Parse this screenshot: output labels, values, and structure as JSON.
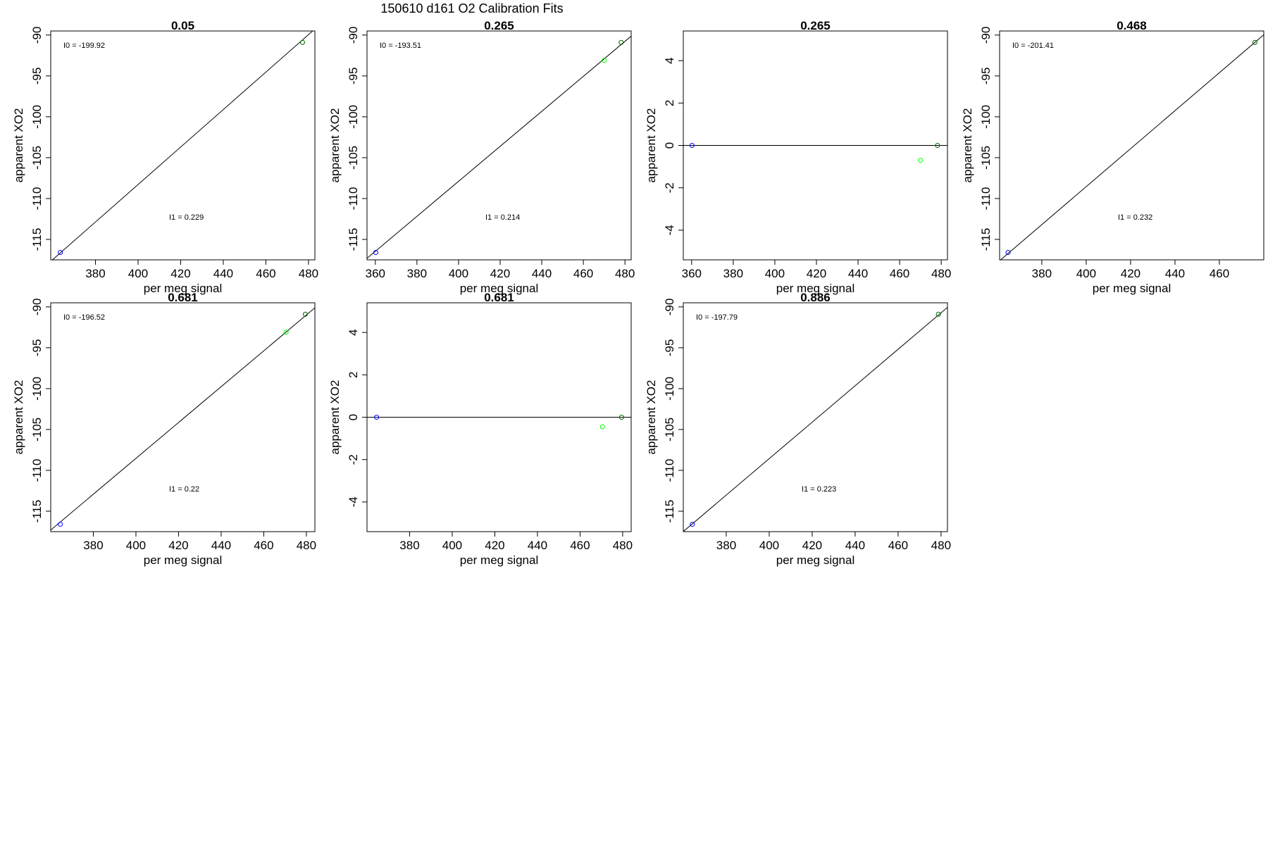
{
  "figure": {
    "title": "150610    d161    O2 Calibration Fits"
  },
  "colors": {
    "frame": "#000000",
    "fit_line": "#000000",
    "blue_point": "#0000ff",
    "green_point": "#00ff00",
    "dark_green_point": "#006400"
  },
  "chart_data": [
    {
      "type": "scatter",
      "title": "0.05",
      "xlabel": "per meg signal",
      "ylabel": "apparent XO2",
      "xlim": [
        359,
        483
      ],
      "ylim": [
        -117.5,
        -89.5
      ],
      "xticks": [
        380,
        400,
        420,
        440,
        460,
        480
      ],
      "yticks": [
        -90,
        -95,
        -100,
        -105,
        -110,
        -115
      ],
      "annotations": [
        {
          "label": "I0 =",
          "value": "-199.92"
        },
        {
          "label": "I1 =",
          "value": "0.229"
        }
      ],
      "fit_line": {
        "x": [
          355,
          485
        ],
        "y": [
          -118.6,
          -88.8
        ]
      },
      "points": [
        {
          "x": 363.5,
          "y": -116.6,
          "color": "blue"
        },
        {
          "x": 477.2,
          "y": -90.9,
          "color": "dark_green"
        }
      ]
    },
    {
      "type": "scatter",
      "title": "0.265",
      "xlabel": "per meg signal",
      "ylabel": "apparent XO2",
      "xlim": [
        356,
        483
      ],
      "ylim": [
        -117.5,
        -89.5
      ],
      "xticks": [
        360,
        380,
        400,
        420,
        440,
        460,
        480
      ],
      "yticks": [
        -90,
        -95,
        -100,
        -105,
        -110,
        -115
      ],
      "annotations": [
        {
          "label": "I0 =",
          "value": "-193.51"
        },
        {
          "label": "I1 =",
          "value": "0.214"
        }
      ],
      "fit_line": {
        "x": [
          350,
          485
        ],
        "y": [
          -118.6,
          -89.7
        ]
      },
      "points": [
        {
          "x": 360.2,
          "y": -116.6,
          "color": "blue"
        },
        {
          "x": 470.0,
          "y": -93.1,
          "color": "green"
        },
        {
          "x": 478.2,
          "y": -90.9,
          "color": "dark_green"
        }
      ]
    },
    {
      "type": "scatter",
      "title": "0.265",
      "xlabel": "per meg signal",
      "ylabel": "apparent XO2",
      "xlim": [
        356,
        483
      ],
      "ylim": [
        -5.4,
        5.4
      ],
      "xticks": [
        360,
        380,
        400,
        420,
        440,
        460,
        480
      ],
      "yticks": [
        4,
        2,
        0,
        -2,
        -4
      ],
      "annotations": [],
      "fit_line": {
        "x": [
          350,
          490
        ],
        "y": [
          0,
          0
        ]
      },
      "points": [
        {
          "x": 360.2,
          "y": 0.0,
          "color": "blue"
        },
        {
          "x": 470.0,
          "y": -0.7,
          "color": "green"
        },
        {
          "x": 478.2,
          "y": 0.0,
          "color": "dark_green"
        }
      ]
    },
    {
      "type": "scatter",
      "title": "0.468",
      "xlabel": "per meg signal",
      "ylabel": "apparent XO2",
      "xlim": [
        361,
        480
      ],
      "ylim": [
        -117.5,
        -89.5
      ],
      "xticks": [
        380,
        400,
        420,
        440,
        460
      ],
      "yticks": [
        -90,
        -95,
        -100,
        -105,
        -110,
        -115
      ],
      "annotations": [
        {
          "label": "I0 =",
          "value": "-201.41"
        },
        {
          "label": "I1 =",
          "value": "0.232"
        }
      ],
      "fit_line": {
        "x": [
          355,
          485
        ],
        "y": [
          -119.0,
          -88.8
        ]
      },
      "points": [
        {
          "x": 364.8,
          "y": -116.6,
          "color": "blue"
        },
        {
          "x": 476.0,
          "y": -90.9,
          "color": "dark_green"
        }
      ]
    },
    {
      "type": "scatter",
      "title": "0.681",
      "xlabel": "per meg signal",
      "ylabel": "apparent XO2",
      "xlim": [
        360,
        484
      ],
      "ylim": [
        -117.5,
        -89.5
      ],
      "xticks": [
        380,
        400,
        420,
        440,
        460,
        480
      ],
      "yticks": [
        -90,
        -95,
        -100,
        -105,
        -110,
        -115
      ],
      "annotations": [
        {
          "label": "I0 =",
          "value": "-196.52"
        },
        {
          "label": "I1 =",
          "value": "0.22"
        }
      ],
      "fit_line": {
        "x": [
          355,
          490
        ],
        "y": [
          -118.4,
          -88.8
        ]
      },
      "points": [
        {
          "x": 364.5,
          "y": -116.6,
          "color": "blue"
        },
        {
          "x": 470.5,
          "y": -93.1,
          "color": "green"
        },
        {
          "x": 479.5,
          "y": -90.9,
          "color": "dark_green"
        }
      ]
    },
    {
      "type": "scatter",
      "title": "0.681",
      "xlabel": "per meg signal",
      "ylabel": "apparent XO2",
      "xlim": [
        360,
        484
      ],
      "ylim": [
        -5.4,
        5.4
      ],
      "xticks": [
        380,
        400,
        420,
        440,
        460,
        480
      ],
      "yticks": [
        4,
        2,
        0,
        -2,
        -4
      ],
      "annotations": [],
      "fit_line": {
        "x": [
          350,
          490
        ],
        "y": [
          0,
          0
        ]
      },
      "points": [
        {
          "x": 364.5,
          "y": 0.0,
          "color": "blue"
        },
        {
          "x": 470.5,
          "y": -0.45,
          "color": "green"
        },
        {
          "x": 479.5,
          "y": 0.0,
          "color": "dark_green"
        }
      ]
    },
    {
      "type": "scatter",
      "title": "0.886",
      "xlabel": "per meg signal",
      "ylabel": "apparent XO2",
      "xlim": [
        360,
        483
      ],
      "ylim": [
        -117.5,
        -89.5
      ],
      "xticks": [
        380,
        400,
        420,
        440,
        460,
        480
      ],
      "yticks": [
        -90,
        -95,
        -100,
        -105,
        -110,
        -115
      ],
      "annotations": [
        {
          "label": "I0 =",
          "value": "-197.79"
        },
        {
          "label": "I1 =",
          "value": "0.223"
        }
      ],
      "fit_line": {
        "x": [
          355,
          490
        ],
        "y": [
          -118.6,
          -88.5
        ]
      },
      "points": [
        {
          "x": 364.2,
          "y": -116.6,
          "color": "blue"
        },
        {
          "x": 478.8,
          "y": -90.9,
          "color": "dark_green"
        }
      ]
    }
  ]
}
